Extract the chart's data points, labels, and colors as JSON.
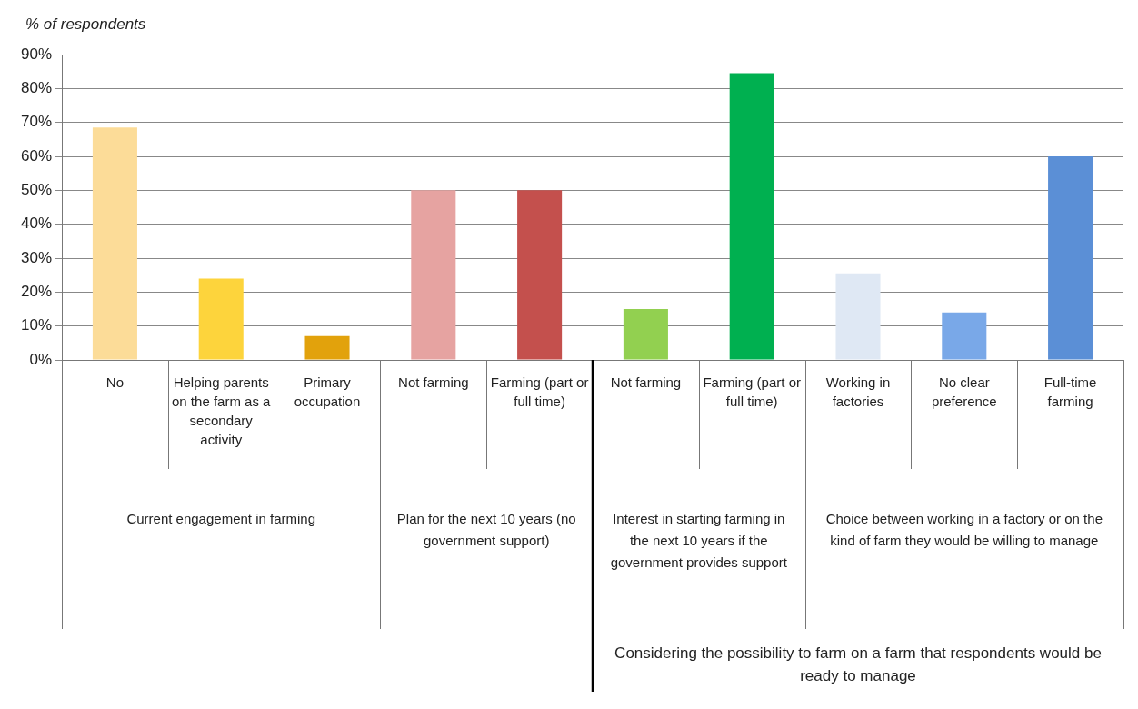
{
  "chart_data": {
    "type": "bar",
    "ylabel": "% of respondents",
    "categories": [
      "No",
      "Helping parents on the farm as a secondary activity",
      "Primary occupation",
      "Not farming",
      "Farming (part or full time)",
      "Not farming",
      "Farming (part or full time)",
      "Working in factories",
      "No clear preference",
      "Full-time farming"
    ],
    "values": [
      68.5,
      24,
      7,
      50,
      50,
      15,
      84.5,
      25.5,
      14,
      60
    ],
    "colors": [
      "#fcdc98",
      "#fdd43c",
      "#e2a20c",
      "#e6a3a1",
      "#c4504d",
      "#92d050",
      "#00b050",
      "#dfe8f4",
      "#79a8e8",
      "#5b8fd6"
    ],
    "ylim": [
      0,
      90
    ],
    "yticks": [
      {
        "value": 0,
        "label": "0%"
      },
      {
        "value": 10,
        "label": "10%"
      },
      {
        "value": 20,
        "label": "20%"
      },
      {
        "value": 30,
        "label": "30%"
      },
      {
        "value": 40,
        "label": "40%"
      },
      {
        "value": 50,
        "label": "50%"
      },
      {
        "value": 60,
        "label": "60%"
      },
      {
        "value": 70,
        "label": "70%"
      },
      {
        "value": 80,
        "label": "80%"
      },
      {
        "value": 90,
        "label": "90%"
      }
    ],
    "grid": "y",
    "legend": false,
    "annotations": [
      "Current engagement in farming",
      "Plan for the next 10 years (no government support)",
      "Interest in starting farming in the next 10 years if the government provides support",
      "Choice between working in a factory or on the kind of farm they would be willing to manage",
      "Considering the possibility to farm on a farm that respondents would be ready to manage"
    ]
  }
}
